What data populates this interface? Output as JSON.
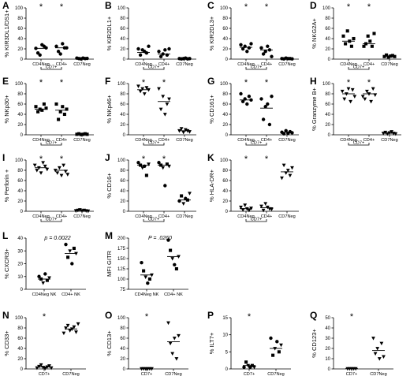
{
  "chart_data": [
    {
      "id": "A",
      "label": "A",
      "type": "scatter",
      "ylabel": "% KIR3DL1/DS1+",
      "ylim": [
        0,
        100
      ],
      "yticks": [
        "0",
        "20",
        "40",
        "60",
        "80",
        "100"
      ],
      "groups": [
        "CD4Neg",
        "CD4+",
        "CD7Neg"
      ],
      "bracket_label": "CD7+",
      "marker": "circle",
      "stars": [
        0,
        1
      ],
      "values": [
        [
          21,
          12,
          8,
          28,
          25,
          22
        ],
        [
          25,
          15,
          10,
          30,
          22,
          22
        ],
        [
          2,
          1,
          0.5,
          2,
          1,
          1.5
        ]
      ],
      "medians": [
        21,
        22,
        1.5
      ]
    },
    {
      "id": "B",
      "label": "B",
      "type": "scatter",
      "ylabel": "% KIR2DL1+",
      "ylim": [
        0,
        100
      ],
      "yticks": [
        "0",
        "20",
        "40",
        "60",
        "80",
        "100"
      ],
      "groups": [
        "CD4Neg",
        "CD4+",
        "CD7Neg"
      ],
      "bracket_label": "CD7+",
      "marker": "circle",
      "stars": [],
      "values": [
        [
          20,
          8,
          18,
          15,
          12,
          25
        ],
        [
          15,
          5,
          10,
          18,
          8,
          20
        ],
        [
          1,
          0.5,
          1,
          2,
          0.5,
          1
        ]
      ],
      "medians": [
        13,
        10,
        1
      ]
    },
    {
      "id": "C",
      "label": "C",
      "type": "scatter",
      "ylabel": "% KIR2DL3+",
      "ylim": [
        0,
        100
      ],
      "yticks": [
        "0",
        "20",
        "40",
        "60",
        "80",
        "100"
      ],
      "groups": [
        "CD4Neg",
        "CD4+",
        "CD7Neg"
      ],
      "bracket_label": "CD7+",
      "marker": "circle",
      "stars": [
        0,
        1
      ],
      "values": [
        [
          28,
          20,
          25,
          15,
          22,
          30
        ],
        [
          22,
          10,
          15,
          25,
          18,
          5
        ],
        [
          1,
          0.5,
          2,
          1,
          1,
          0.5
        ]
      ],
      "medians": [
        23,
        18,
        1
      ]
    },
    {
      "id": "D",
      "label": "D",
      "type": "scatter",
      "ylabel": "% NKG2A+",
      "ylim": [
        0,
        100
      ],
      "yticks": [
        "0",
        "20",
        "40",
        "60",
        "80",
        "100"
      ],
      "groups": [
        "CD4Neg",
        "CD4+",
        "CD7Neg"
      ],
      "bracket_label": "CD7+",
      "marker": "square",
      "stars": [
        0,
        1
      ],
      "values": [
        [
          45,
          30,
          55,
          35,
          25,
          40
        ],
        [
          25,
          30,
          45,
          35,
          25,
          50
        ],
        [
          5,
          8,
          4,
          6,
          7,
          5
        ]
      ],
      "medians": [
        35,
        30,
        6
      ]
    },
    {
      "id": "E",
      "label": "E",
      "type": "scatter",
      "ylabel": "% NKp30+",
      "ylim": [
        0,
        100
      ],
      "yticks": [
        "0",
        "20",
        "40",
        "60",
        "80",
        "100"
      ],
      "groups": [
        "CD4Neg",
        "CD4+",
        "CD7Neg"
      ],
      "bracket_label": "CD7+",
      "marker": "square",
      "stars": [
        0,
        1
      ],
      "values": [
        [
          55,
          45,
          50,
          48,
          60,
          52
        ],
        [
          60,
          30,
          45,
          55,
          40,
          50
        ],
        [
          1,
          2,
          0.5,
          1,
          2,
          1
        ]
      ],
      "medians": [
        50,
        48,
        1
      ]
    },
    {
      "id": "F",
      "label": "F",
      "type": "scatter",
      "ylabel": "% NKp46+",
      "ylim": [
        0,
        100
      ],
      "yticks": [
        "0",
        "20",
        "40",
        "60",
        "80",
        "100"
      ],
      "groups": [
        "CD4Neg",
        "CD4+",
        "CD7Neg"
      ],
      "bracket_label": "CD7+",
      "marker": "triangle-down",
      "stars": [
        0,
        1
      ],
      "values": [
        [
          95,
          85,
          90,
          80,
          92,
          88
        ],
        [
          90,
          50,
          75,
          40,
          60,
          70
        ],
        [
          8,
          12,
          5,
          10,
          8,
          6
        ]
      ],
      "medians": [
        88,
        65,
        8
      ]
    },
    {
      "id": "G",
      "label": "G",
      "type": "scatter",
      "ylabel": "% CD161+",
      "ylim": [
        0,
        100
      ],
      "yticks": [
        "0",
        "20",
        "40",
        "60",
        "80",
        "100"
      ],
      "groups": [
        "CD4Neg",
        "CD4+",
        "CD7Neg"
      ],
      "bracket_label": "CD7+",
      "marker": "circle",
      "stars": [
        0,
        1
      ],
      "values": [
        [
          80,
          65,
          70,
          60,
          75,
          68
        ],
        [
          70,
          30,
          55,
          60,
          20,
          75
        ],
        [
          5,
          2,
          8,
          3,
          6,
          4
        ]
      ],
      "medians": [
        68,
        52,
        5
      ]
    },
    {
      "id": "H",
      "label": "H",
      "type": "scatter",
      "ylabel": "% Granzyme B+",
      "ylim": [
        0,
        100
      ],
      "yticks": [
        "0",
        "20",
        "40",
        "60",
        "80",
        "100"
      ],
      "groups": [
        "CD4Neg",
        "CD4+",
        "CD7Neg"
      ],
      "bracket_label": "CD7+",
      "marker": "triangle-down",
      "stars": [
        0,
        1
      ],
      "values": [
        [
          85,
          70,
          80,
          90,
          65,
          88,
          75
        ],
        [
          75,
          70,
          85,
          80,
          65,
          90,
          78
        ],
        [
          3,
          5,
          2,
          4,
          6,
          3,
          2
        ]
      ],
      "medians": [
        80,
        80,
        3
      ]
    },
    {
      "id": "I",
      "label": "I",
      "type": "scatter",
      "ylabel": "% Perforin +",
      "ylim": [
        0,
        100
      ],
      "yticks": [
        "0",
        "20",
        "40",
        "60",
        "80",
        "100"
      ],
      "groups": [
        "CD4Neg",
        "CD4+",
        "CD7Neg"
      ],
      "bracket_label": "CD7+",
      "marker": "triangle-down",
      "stars": [
        0,
        1
      ],
      "values": [
        [
          90,
          80,
          85,
          75,
          95,
          88,
          82
        ],
        [
          80,
          75,
          85,
          70,
          90,
          78,
          72
        ],
        [
          1,
          2,
          3,
          1,
          2,
          1,
          0.5
        ]
      ],
      "medians": [
        85,
        80,
        2
      ]
    },
    {
      "id": "J",
      "label": "J",
      "type": "scatter",
      "ylabel": "% CD16+",
      "ylim": [
        0,
        100
      ],
      "yticks": [
        "0",
        "20",
        "40",
        "60",
        "80",
        "100"
      ],
      "groups": [
        "CD4Neg",
        "CD4+",
        "CD7Neg"
      ],
      "bracket_label": "CD7+",
      "marker": "mixed",
      "stars": [
        0,
        1
      ],
      "values": [
        [
          95,
          90,
          85,
          88,
          70,
          92
        ],
        [
          95,
          90,
          85,
          50,
          92,
          88
        ],
        [
          20,
          30,
          15,
          25,
          22,
          35
        ]
      ],
      "medians": [
        90,
        90,
        22
      ]
    },
    {
      "id": "K",
      "label": "K",
      "type": "scatter",
      "ylabel": "% HLA-DR+",
      "ylim": [
        0,
        100
      ],
      "yticks": [
        "0",
        "20",
        "40",
        "60",
        "80",
        "100"
      ],
      "groups": [
        "CD4Neg",
        "CD4+",
        "CD7Neg"
      ],
      "bracket_label": "CD7+",
      "marker": "triangle-down",
      "stars": [
        0,
        1
      ],
      "values": [
        [
          8,
          3,
          12,
          5,
          2,
          6
        ],
        [
          10,
          2,
          15,
          8,
          5,
          4
        ],
        [
          65,
          90,
          75,
          80,
          70,
          85
        ]
      ],
      "medians": [
        5,
        7,
        77
      ]
    },
    {
      "id": "L",
      "label": "L",
      "type": "scatter",
      "ylabel": "% CXCR3+",
      "ylim": [
        0,
        40
      ],
      "yticks": [
        "0",
        "10",
        "20",
        "30",
        "40"
      ],
      "groups": [
        "CD4Neg NK",
        "CD4+ NK"
      ],
      "bracket_label": "",
      "marker": "mixed",
      "stars": [],
      "annotation": "p = 0.0022",
      "values": [
        [
          10,
          8,
          5,
          12,
          7,
          9
        ],
        [
          35,
          25,
          30,
          20,
          32,
          28
        ]
      ],
      "medians": [
        8,
        28
      ]
    },
    {
      "id": "M",
      "label": "M",
      "type": "scatter",
      "ylabel": "MFI GITR",
      "ylim": [
        75,
        200
      ],
      "yticks": [
        "75",
        "100",
        "125",
        "150",
        "175",
        "200"
      ],
      "groups": [
        "CD4Neg NK",
        "CD4+ NK"
      ],
      "bracket_label": "",
      "marker": "mixed",
      "stars": [],
      "annotation": "P = .0260",
      "values": [
        [
          140,
          120,
          105,
          90,
          100,
          110
        ],
        [
          195,
          170,
          150,
          135,
          125,
          155
        ]
      ],
      "medians": [
        110,
        155
      ]
    },
    {
      "id": "N",
      "label": "N",
      "type": "scatter",
      "ylabel": "% CD33+",
      "ylim": [
        0,
        100
      ],
      "yticks": [
        "0",
        "20",
        "40",
        "60",
        "80",
        "100"
      ],
      "groups": [
        "CD7+",
        "CD7Neg"
      ],
      "bracket_label": "",
      "marker": "triangle-down",
      "stars": [
        0
      ],
      "values": [
        [
          2,
          5,
          8,
          3,
          1,
          4,
          6,
          2
        ],
        [
          70,
          80,
          85,
          75,
          78,
          82,
          72,
          88
        ]
      ],
      "medians": [
        4,
        78
      ]
    },
    {
      "id": "O",
      "label": "O",
      "type": "scatter",
      "ylabel": "% CD13+",
      "ylim": [
        0,
        100
      ],
      "yticks": [
        "0",
        "20",
        "40",
        "60",
        "80",
        "100"
      ],
      "groups": [
        "CD7+",
        "CD7Neg"
      ],
      "bracket_label": "",
      "marker": "triangle-down",
      "stars": [
        0
      ],
      "values": [
        [
          0.5,
          0.5,
          0.5,
          0.5,
          0.5,
          0.5
        ],
        [
          90,
          50,
          30,
          60,
          20,
          65
        ]
      ],
      "medians": [
        0.5,
        53
      ]
    },
    {
      "id": "P",
      "label": "P",
      "type": "scatter",
      "ylabel": "% ILT7+",
      "ylim": [
        0,
        15
      ],
      "yticks": [
        "0",
        "5",
        "10",
        "15"
      ],
      "groups": [
        "CD7+",
        "CD7Neg"
      ],
      "bracket_label": "",
      "marker": "mixed",
      "stars": [
        0
      ],
      "values": [
        [
          0.5,
          2,
          1,
          0.5,
          1,
          0.5
        ],
        [
          9,
          4,
          6,
          8,
          5,
          7
        ]
      ],
      "medians": [
        1,
        6
      ]
    },
    {
      "id": "Q",
      "label": "Q",
      "type": "scatter",
      "ylabel": "% CD123+",
      "ylim": [
        0,
        50
      ],
      "yticks": [
        "0",
        "10",
        "20",
        "30",
        "40",
        "50"
      ],
      "groups": [
        "CD7+",
        "CD7Neg"
      ],
      "bracket_label": "",
      "marker": "triangle-down",
      "stars": [
        0
      ],
      "values": [
        [
          0.3,
          0.3,
          0.3,
          0.3,
          0.3
        ],
        [
          30,
          15,
          20,
          10,
          25,
          12
        ]
      ],
      "medians": [
        0.3,
        18
      ]
    }
  ]
}
